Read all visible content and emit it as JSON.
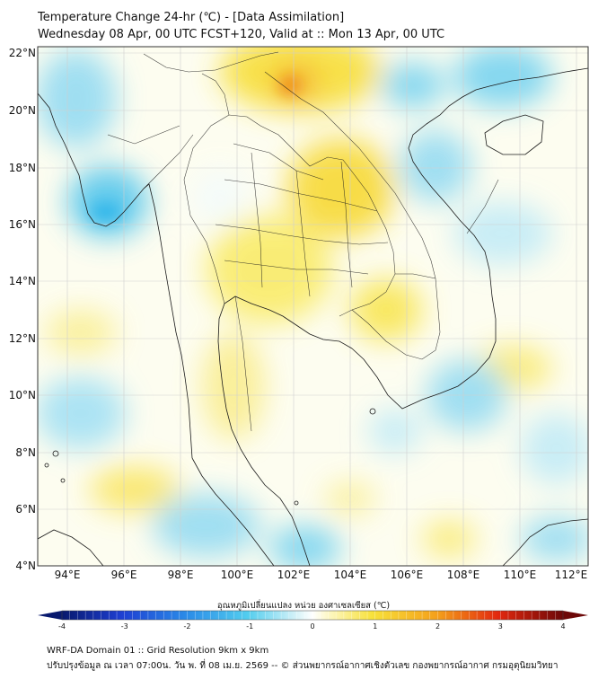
{
  "header": {
    "title_line1": "Temperature Change 24-hr (℃) - [Data Assimilation]",
    "title_line2": "Wednesday 08 Apr, 00 UTC FCST+120, Valid at :: Mon 13 Apr, 00 UTC"
  },
  "map": {
    "lat_labels": [
      "22°N",
      "20°N",
      "18°N",
      "16°N",
      "14°N",
      "12°N",
      "10°N",
      "8°N",
      "6°N",
      "4°N"
    ],
    "lon_labels": [
      "94°E",
      "96°E",
      "98°E",
      "100°E",
      "102°E",
      "104°E",
      "106°E",
      "108°E",
      "110°E",
      "112°E"
    ],
    "lat_range": [
      4,
      22.2
    ],
    "lon_range": [
      93,
      112.4
    ]
  },
  "colorbar": {
    "title": "อุณหภูมิเปลี่ยนแปลง หน่วย องศาเซลเซียส (℃)",
    "ticks": [
      "-4",
      "-3",
      "-2",
      "-1",
      "0",
      "1",
      "2",
      "3",
      "4"
    ],
    "min": -4,
    "max": 4
  },
  "footer": {
    "line1": "WRF-DA Domain 01 :: Grid Resolution 9km x 9km",
    "line2": "ปรับปรุงข้อมูล ณ เวลา 07:00น. วัน พ. ที่ 08 เม.ย. 2569 -- © ส่วนพยากรณ์อากาศเชิงตัวเลข กองพยากรณ์อากาศ กรมอุตุนิยมวิทยา"
  },
  "colors": {
    "warm_strong": "#f2a218",
    "warm": "#f7dc2a",
    "warm_light": "#fbf09a",
    "cool": "#4fc8ec",
    "cool_light": "#bfeaf7",
    "neutral": "#fdfdf2"
  }
}
